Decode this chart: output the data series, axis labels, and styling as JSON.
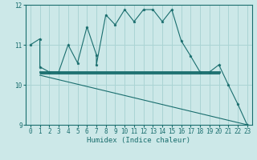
{
  "title": "",
  "xlabel": "Humidex (Indice chaleur)",
  "xlim": [
    -0.5,
    23.5
  ],
  "ylim": [
    9,
    12
  ],
  "yticks": [
    9,
    10,
    11,
    12
  ],
  "xticks": [
    0,
    1,
    2,
    3,
    4,
    5,
    6,
    7,
    8,
    9,
    10,
    11,
    12,
    13,
    14,
    15,
    16,
    17,
    18,
    19,
    20,
    21,
    22,
    23
  ],
  "bg_color": "#cce8e8",
  "line_color": "#1a6e6e",
  "grid_color": "#aad4d4",
  "series1": [
    [
      0,
      11.0
    ],
    [
      1,
      11.15
    ],
    [
      1,
      10.45
    ],
    [
      2,
      10.32
    ],
    [
      3,
      10.32
    ],
    [
      4,
      11.0
    ],
    [
      5,
      10.55
    ],
    [
      6,
      11.45
    ],
    [
      7,
      10.75
    ],
    [
      7,
      10.5
    ],
    [
      8,
      11.75
    ],
    [
      9,
      11.5
    ],
    [
      10,
      11.88
    ],
    [
      11,
      11.58
    ],
    [
      12,
      11.88
    ],
    [
      13,
      11.88
    ],
    [
      14,
      11.58
    ],
    [
      15,
      11.88
    ],
    [
      16,
      11.1
    ],
    [
      17,
      10.72
    ],
    [
      18,
      10.32
    ],
    [
      19,
      10.32
    ],
    [
      20,
      10.5
    ],
    [
      21,
      10.0
    ],
    [
      22,
      9.52
    ],
    [
      23,
      9.0
    ]
  ],
  "series2": [
    [
      1,
      10.32
    ],
    [
      20,
      10.32
    ]
  ],
  "series3": [
    [
      1,
      10.28
    ],
    [
      20,
      10.28
    ]
  ],
  "series4": [
    [
      1,
      10.24
    ],
    [
      23,
      9.0
    ]
  ]
}
